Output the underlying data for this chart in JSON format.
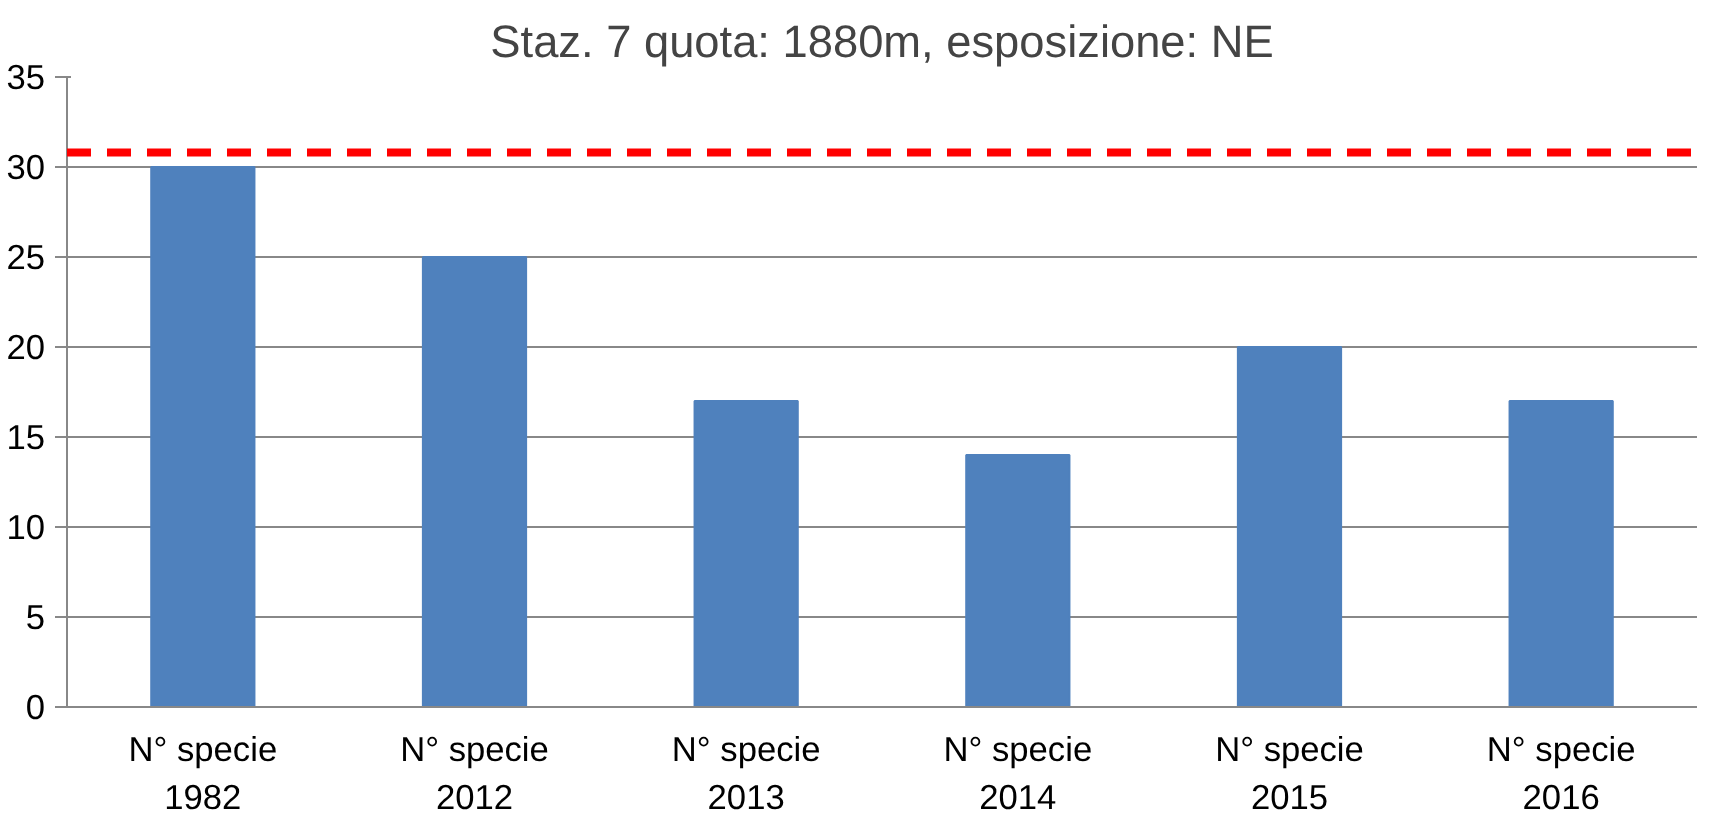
{
  "chart_data": {
    "type": "bar",
    "title": "Staz. 7 quota: 1880m, esposizione: NE",
    "categories": [
      "N° specie\n1982",
      "N° specie\n2012",
      "N° specie\n2013",
      "N° specie\n2014",
      "N° specie\n2015",
      "N° specie\n2016"
    ],
    "values": [
      30,
      25,
      17,
      14,
      20,
      17
    ],
    "color": "#4f81bd",
    "ylim": [
      0,
      35
    ],
    "yticks": [
      0,
      5,
      10,
      15,
      20,
      25,
      30,
      35
    ],
    "grid": "y",
    "ref_lines": [
      {
        "axis": "y",
        "value": 30.8,
        "color": "#ff0000",
        "line_style": "dashed"
      }
    ]
  }
}
